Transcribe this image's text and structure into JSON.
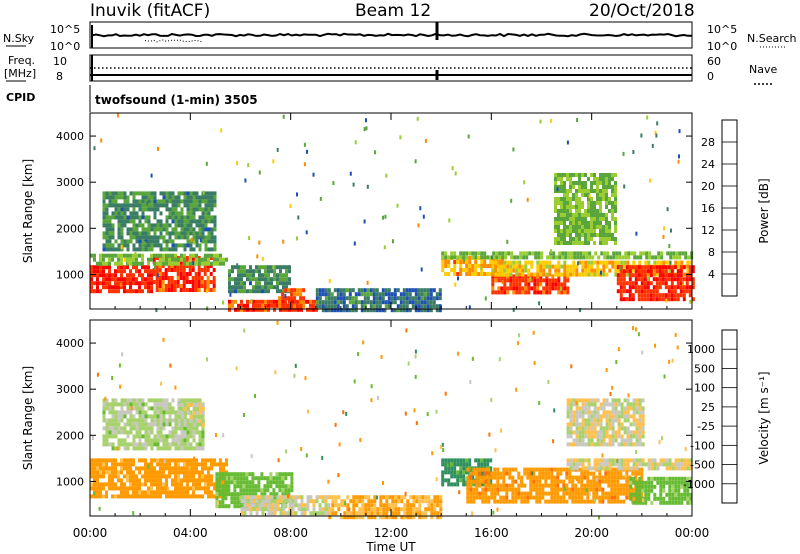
{
  "header": {
    "station": "Inuvik (fitACF)",
    "beam": "Beam 12",
    "date": "20/Oct/2018"
  },
  "noise_panel": {
    "left_label": "N.Sky",
    "left_ticks": [
      "10^5",
      "10^0"
    ],
    "right_label": "N.Search",
    "right_ticks": [
      "10^5",
      "10^0"
    ]
  },
  "freq_panel": {
    "left_label_1": "Freq.",
    "left_label_2": "[MHz]",
    "left_ticks": [
      "10",
      "8"
    ],
    "right_label": "Nave",
    "right_ticks": [
      "60",
      "0"
    ],
    "cpid_label": "CPID"
  },
  "program": "twofsound (1-min) 3505",
  "x_axis": {
    "ticks": [
      "00:00",
      "04:00",
      "08:00",
      "12:00",
      "16:00",
      "20:00",
      "00:00"
    ],
    "label": "Time UT"
  },
  "power_panel": {
    "ylabel": "Slant Range [km]",
    "yticks": [
      "1000",
      "2000",
      "3000",
      "4000"
    ],
    "cbar_label": "Power [dB]",
    "cbar_ticks": [
      "4",
      "8",
      "12",
      "16",
      "20",
      "24",
      "28"
    ],
    "cbar_colors": [
      "#0000ff",
      "#1e4fb4",
      "#3a7d64",
      "#5aa63c",
      "#9acd32",
      "#ffcc00",
      "#ff8c00",
      "#ff3300",
      "#ff0000"
    ]
  },
  "velocity_panel": {
    "ylabel": "Slant Range [km]",
    "yticks": [
      "1000",
      "2000",
      "3000",
      "4000"
    ],
    "cbar_label": "Velocity [m s⁻¹]",
    "cbar_ticks": [
      "1000",
      "500",
      "100",
      "25",
      "-25",
      "-100",
      "-500",
      "-1000"
    ],
    "cbar_colors": [
      "#0000ff",
      "#1e5fd0",
      "#2f8f5f",
      "#66bb33",
      "#a8d26b",
      "#c8c8c0",
      "#ffc04d",
      "#ff9a00",
      "#ff7000",
      "#ff3000",
      "#ff0000"
    ]
  },
  "chart_data": [
    {
      "type": "heatmap",
      "name": "power",
      "x_unit": "hours UT",
      "xlim": [
        0,
        24
      ],
      "ylim": [
        250,
        4500
      ],
      "colorbar_range_db": [
        0,
        32
      ],
      "regions": [
        {
          "x": [
            0.0,
            2.5
          ],
          "y": [
            600,
            1200
          ],
          "value": 28
        },
        {
          "x": [
            2.5,
            5.0
          ],
          "y": [
            700,
            1400
          ],
          "value": 27
        },
        {
          "x": [
            0.0,
            5.5
          ],
          "y": [
            1200,
            1450
          ],
          "value": 14
        },
        {
          "x": [
            0.5,
            5.0
          ],
          "y": [
            1500,
            2800
          ],
          "value": 10
        },
        {
          "x": [
            5.5,
            8.0
          ],
          "y": [
            600,
            1200
          ],
          "value": 10
        },
        {
          "x": [
            5.5,
            9.0
          ],
          "y": [
            250,
            450
          ],
          "value": 27
        },
        {
          "x": [
            7.5,
            8.5
          ],
          "y": [
            300,
            700
          ],
          "value": 25
        },
        {
          "x": [
            9.0,
            14.0
          ],
          "y": [
            250,
            700
          ],
          "value": 8
        },
        {
          "x": [
            14.0,
            16.5
          ],
          "y": [
            1000,
            1400
          ],
          "value": 22
        },
        {
          "x": [
            14.0,
            24.0
          ],
          "y": [
            1350,
            1500
          ],
          "value": 14
        },
        {
          "x": [
            16.0,
            19.0
          ],
          "y": [
            650,
            1000
          ],
          "value": 27
        },
        {
          "x": [
            16.0,
            24.0
          ],
          "y": [
            1000,
            1300
          ],
          "value": 20
        },
        {
          "x": [
            21.0,
            24.0
          ],
          "y": [
            450,
            1200
          ],
          "value": 28
        },
        {
          "x": [
            18.5,
            21.0
          ],
          "y": [
            1700,
            3200
          ],
          "value": 14
        }
      ]
    },
    {
      "type": "heatmap",
      "name": "velocity",
      "x_unit": "hours UT",
      "xlim": [
        0,
        24
      ],
      "ylim": [
        250,
        4500
      ],
      "colorbar_ticks": [
        1000,
        500,
        100,
        25,
        -25,
        -100,
        -500,
        -1000
      ],
      "regions": [
        {
          "x": [
            0.0,
            5.5
          ],
          "y": [
            700,
            1500
          ],
          "value": -150
        },
        {
          "x": [
            0.5,
            4.5
          ],
          "y": [
            1700,
            2800
          ],
          "value": 50
        },
        {
          "x": [
            3.5,
            4.5
          ],
          "y": [
            2200,
            2700
          ],
          "value": 0
        },
        {
          "x": [
            5.0,
            8.0
          ],
          "y": [
            500,
            1200
          ],
          "value": 150
        },
        {
          "x": [
            6.0,
            9.5
          ],
          "y": [
            300,
            700
          ],
          "value": 0
        },
        {
          "x": [
            9.5,
            14.0
          ],
          "y": [
            250,
            700
          ],
          "value": -100
        },
        {
          "x": [
            14.0,
            16.0
          ],
          "y": [
            900,
            1500
          ],
          "value": 300
        },
        {
          "x": [
            15.0,
            22.0
          ],
          "y": [
            600,
            1300
          ],
          "value": -200
        },
        {
          "x": [
            19.0,
            24.0
          ],
          "y": [
            1250,
            1500
          ],
          "value": 0
        },
        {
          "x": [
            21.5,
            24.0
          ],
          "y": [
            500,
            1100
          ],
          "value": 150
        },
        {
          "x": [
            19.0,
            22.0
          ],
          "y": [
            1800,
            2800
          ],
          "value": 0
        }
      ]
    }
  ]
}
